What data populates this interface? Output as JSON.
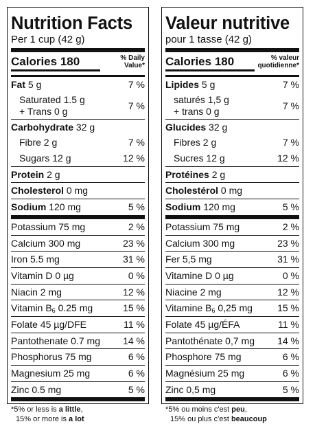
{
  "en": {
    "title": "Nutrition Facts",
    "serving": "Per 1 cup (42 g)",
    "calories_label": "Calories",
    "calories_value": "180",
    "dv_header": "% Daily\nValue*",
    "fat": {
      "label": "Fat",
      "value": "5 g",
      "pct": "7 %"
    },
    "saturated": {
      "line1": "Saturated 1.5 g",
      "line2": "+ Trans 0 g",
      "pct": "7 %"
    },
    "carb": {
      "label": "Carbohydrate",
      "value": "32 g"
    },
    "fibre": {
      "label": "Fibre 2 g",
      "pct": "7 %"
    },
    "sugars": {
      "label": "Sugars 12 g",
      "pct": "12 %"
    },
    "protein": {
      "label": "Protein",
      "value": "2 g"
    },
    "cholesterol": {
      "label": "Cholesterol",
      "value": "0 mg"
    },
    "sodium": {
      "label": "Sodium",
      "value": "120 mg",
      "pct": "5 %"
    },
    "potassium": {
      "label": "Potassium 75 mg",
      "pct": "2 %"
    },
    "calcium": {
      "label": "Calcium 300 mg",
      "pct": "23 %"
    },
    "iron": {
      "label": "Iron 5.5 mg",
      "pct": "31 %"
    },
    "vitd": {
      "label": "Vitamin D 0 µg",
      "pct": "0 %"
    },
    "niacin": {
      "label": "Niacin 2 mg",
      "pct": "12 %"
    },
    "vitb6": {
      "pre": "Vitamin B",
      "sub": "6",
      "post": " 0.25 mg",
      "pct": "15 %"
    },
    "folate": {
      "label": "Folate 45 µg/DFE",
      "pct": "11 %"
    },
    "panto": {
      "label": "Pantothenate 0.7 mg",
      "pct": "14 %"
    },
    "phosphorus": {
      "label": "Phosphorus 75 mg",
      "pct": "6 %"
    },
    "magnesium": {
      "label": "Magnesium 25 mg",
      "pct": "6 %"
    },
    "zinc": {
      "label": "Zinc 0.5 mg",
      "pct": "5 %"
    },
    "foot1_pre": "*5% or less is ",
    "foot1_bold": "a little",
    "foot1_post": ",",
    "foot2_pre": "15% or more is ",
    "foot2_bold": "a lot"
  },
  "fr": {
    "title": "Valeur nutritive",
    "serving": "pour 1 tasse (42 g)",
    "calories_label": "Calories",
    "calories_value": "180",
    "dv_header": "% valeur\nquotidienne*",
    "fat": {
      "label": "Lipides",
      "value": "5 g",
      "pct": "7 %"
    },
    "saturated": {
      "line1": "saturés 1,5 g",
      "line2": "+ trans 0 g",
      "pct": "7 %"
    },
    "carb": {
      "label": "Glucides",
      "value": "32 g"
    },
    "fibre": {
      "label": "Fibres 2 g",
      "pct": "7 %"
    },
    "sugars": {
      "label": "Sucres 12 g",
      "pct": "12 %"
    },
    "protein": {
      "label": "Protéines",
      "value": "2 g"
    },
    "cholesterol": {
      "label": "Cholestérol",
      "value": "0 mg"
    },
    "sodium": {
      "label": "Sodium",
      "value": "120 mg",
      "pct": "5 %"
    },
    "potassium": {
      "label": "Potassium 75 mg",
      "pct": "2 %"
    },
    "calcium": {
      "label": "Calcium 300 mg",
      "pct": "23 %"
    },
    "iron": {
      "label": "Fer 5,5 mg",
      "pct": "31 %"
    },
    "vitd": {
      "label": "Vitamine D 0 µg",
      "pct": "0 %"
    },
    "niacin": {
      "label": "Niacine 2 mg",
      "pct": "12 %"
    },
    "vitb6": {
      "pre": "Vitamine B",
      "sub": "6",
      "post": " 0,25 mg",
      "pct": "15 %"
    },
    "folate": {
      "label": "Folate 45 µg/ÉFA",
      "pct": "11 %"
    },
    "panto": {
      "label": "Pantothénate 0,7 mg",
      "pct": "14 %"
    },
    "phosphorus": {
      "label": "Phosphore 75 mg",
      "pct": "6 %"
    },
    "magnesium": {
      "label": "Magnésium 25 mg",
      "pct": "6 %"
    },
    "zinc": {
      "label": "Zinc 0,5 mg",
      "pct": "5 %"
    },
    "foot1_pre": "*5% ou moins c'est ",
    "foot1_bold": "peu",
    "foot1_post": ",",
    "foot2_pre": "15% ou plus c'est ",
    "foot2_bold": "beaucoup"
  }
}
